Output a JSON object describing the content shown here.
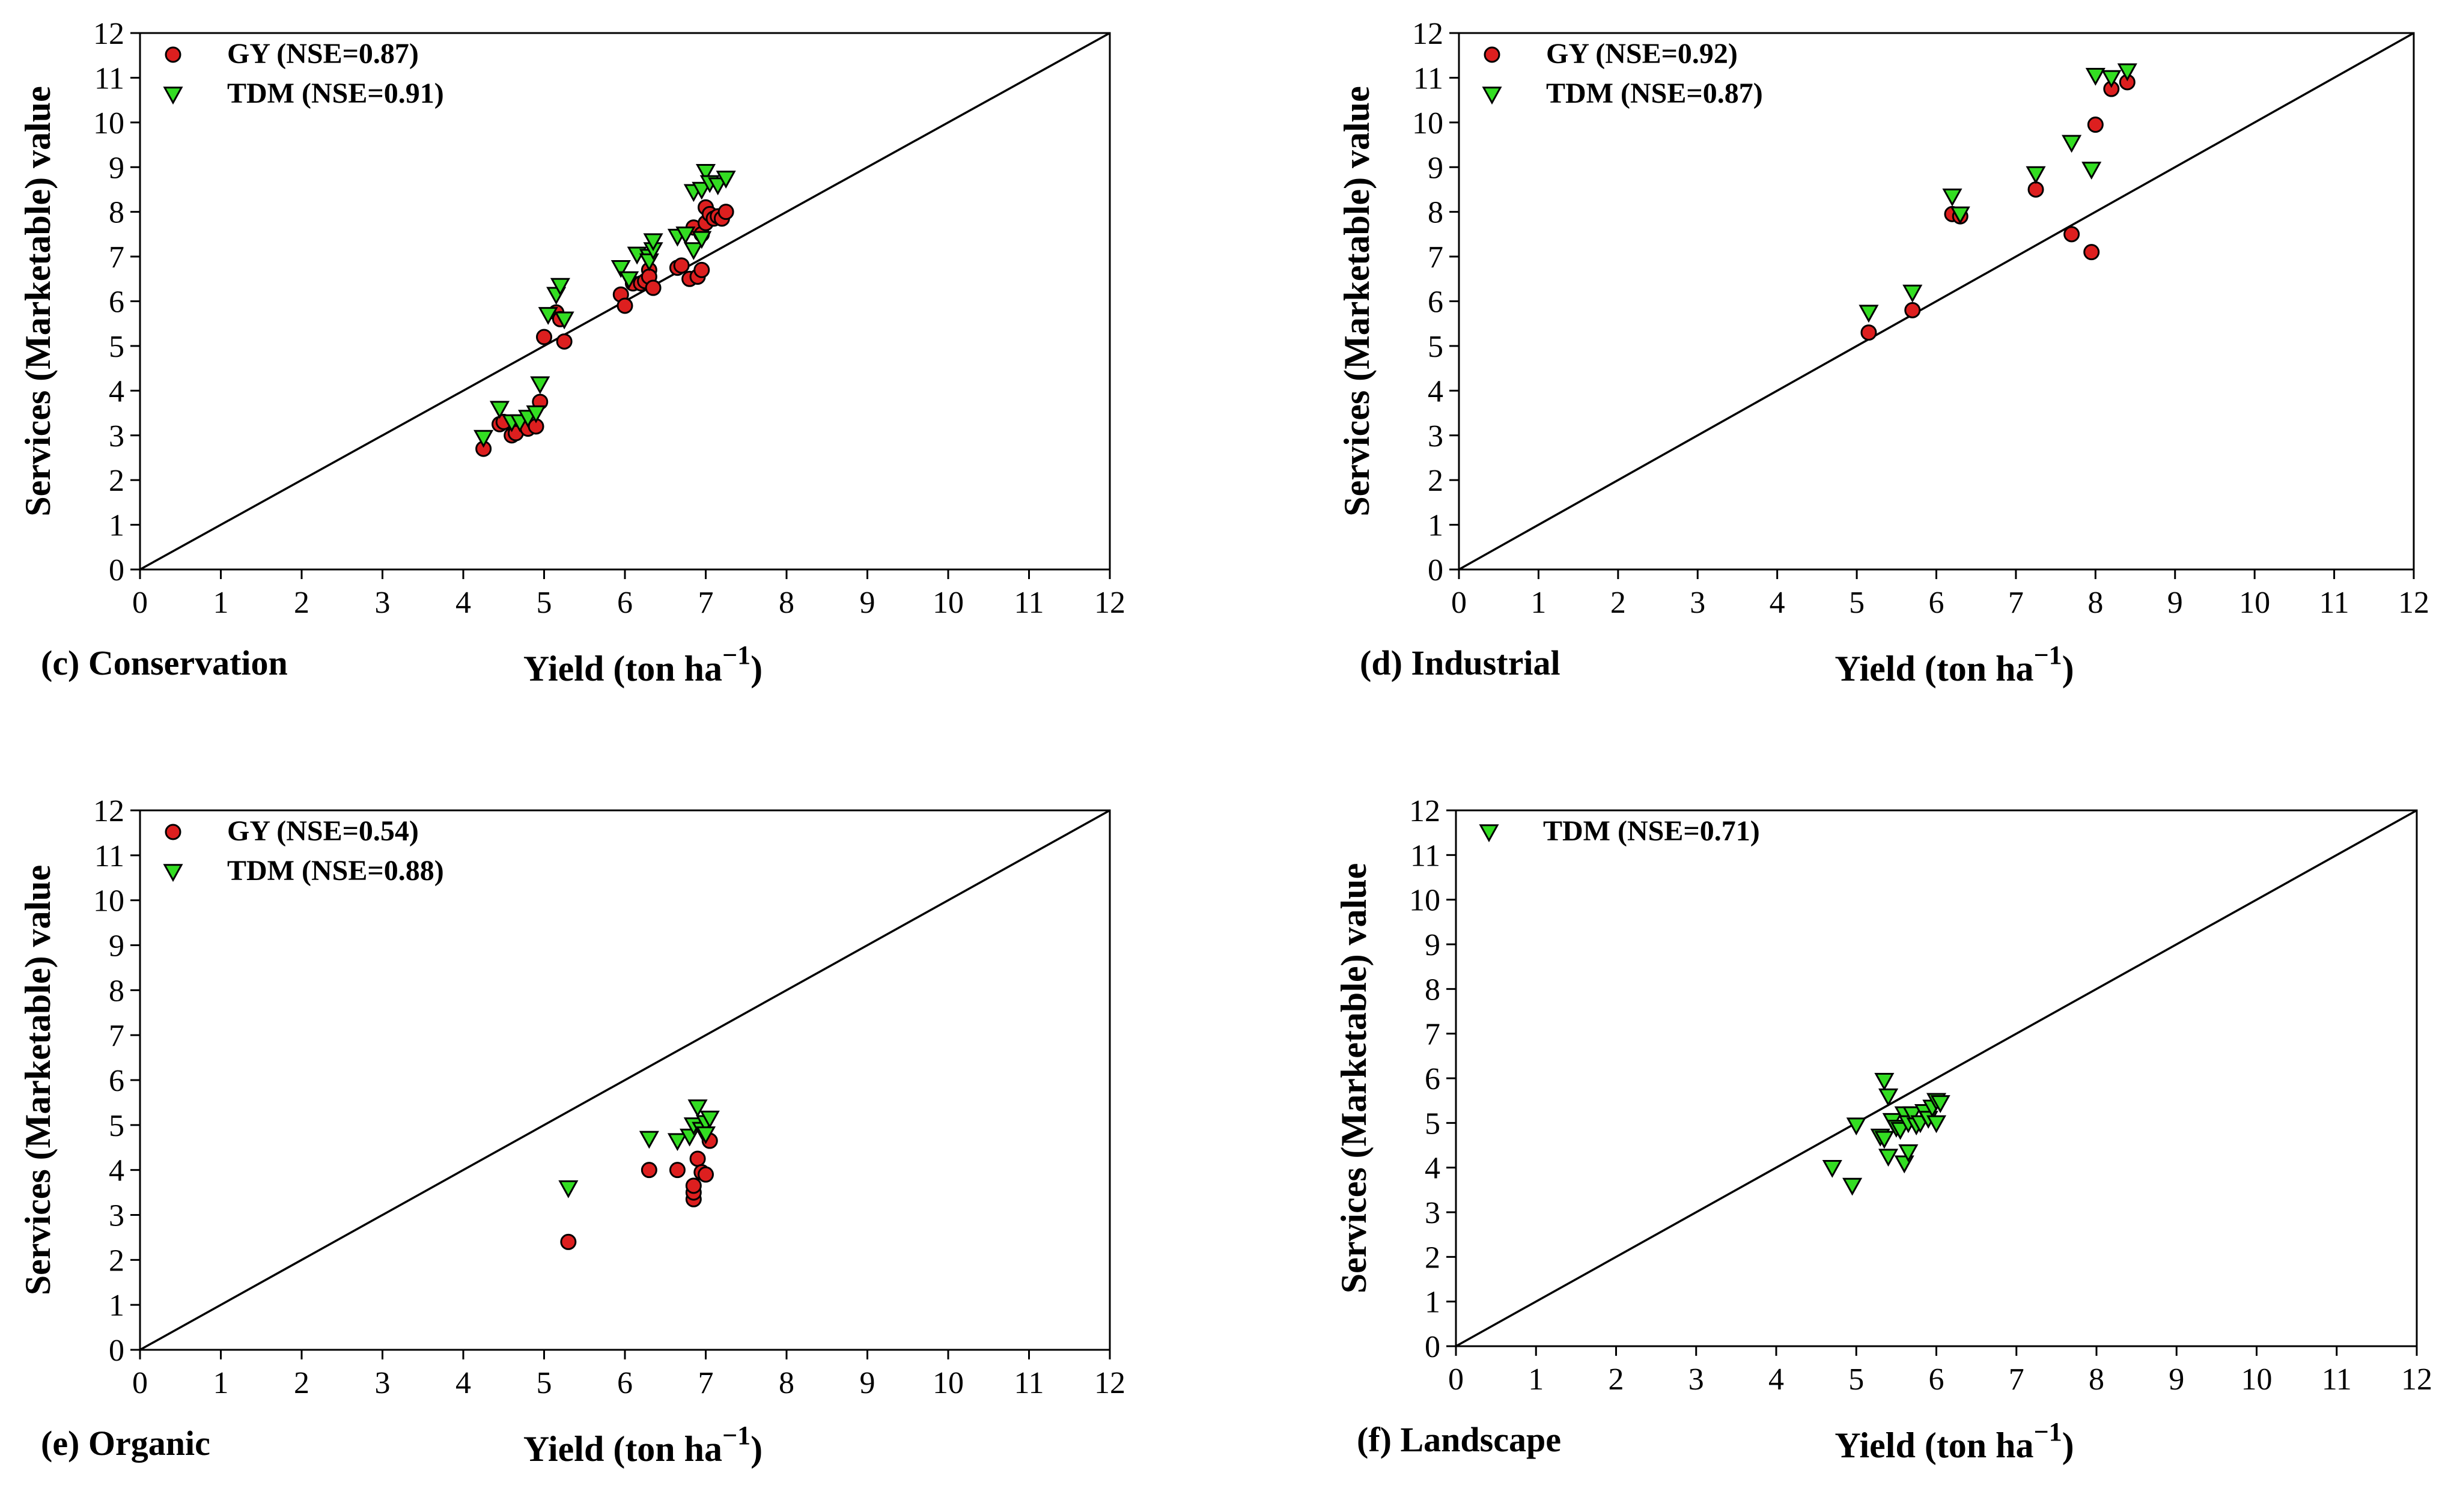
{
  "colors": {
    "gy": "#dd1f1f",
    "tdm": "#33dd22",
    "marker_stroke": "#000000",
    "line": "#000000"
  },
  "chart_data": [
    {
      "type": "scatter",
      "panel_label": "(c) Conservation",
      "xlabel": "Yield (ton ha",
      "xlabel_sup": "−1",
      "xlabel_close": ")",
      "ylabel": "Services (Marketable) value",
      "xlim": [
        0,
        12
      ],
      "ylim": [
        0,
        12
      ],
      "xticks": [
        "0",
        "1",
        "2",
        "3",
        "4",
        "5",
        "6",
        "7",
        "8",
        "9",
        "10",
        "11",
        "12"
      ],
      "yticks": [
        "0",
        "1",
        "2",
        "3",
        "4",
        "5",
        "6",
        "7",
        "8",
        "9",
        "10",
        "11",
        "12"
      ],
      "grid": false,
      "reference_line": "1:1",
      "legend_position": "top-left",
      "series": [
        {
          "name": "GY (NSE=0.87)",
          "marker": "circle",
          "x": [
            4.25,
            4.45,
            4.5,
            4.6,
            4.65,
            4.8,
            4.9,
            4.95,
            5.0,
            5.15,
            5.2,
            5.25,
            5.95,
            6.0,
            6.1,
            6.2,
            6.25,
            6.3,
            6.3,
            6.35,
            6.65,
            6.7,
            6.8,
            6.85,
            6.9,
            6.95,
            6.95,
            7.0,
            7.0,
            7.05,
            7.1,
            7.15,
            7.2,
            7.25
          ],
          "y": [
            2.7,
            3.25,
            3.3,
            3.0,
            3.05,
            3.15,
            3.2,
            3.75,
            5.2,
            5.75,
            5.6,
            5.1,
            6.15,
            5.9,
            6.4,
            6.4,
            6.45,
            6.7,
            6.55,
            6.3,
            6.75,
            6.8,
            6.5,
            7.65,
            6.55,
            6.7,
            7.5,
            7.75,
            8.1,
            7.95,
            7.85,
            7.9,
            7.85,
            8.0
          ]
        },
        {
          "name": "TDM (NSE=0.91)",
          "marker": "triangle-down",
          "x": [
            4.25,
            4.45,
            4.6,
            4.7,
            4.8,
            4.9,
            4.95,
            5.05,
            5.15,
            5.2,
            5.25,
            5.95,
            6.05,
            6.15,
            6.3,
            6.3,
            6.35,
            6.35,
            6.65,
            6.75,
            6.85,
            6.85,
            6.95,
            6.95,
            7.0,
            7.05,
            7.15,
            7.25
          ],
          "y": [
            2.95,
            3.6,
            3.3,
            3.3,
            3.4,
            3.5,
            4.15,
            5.7,
            6.15,
            6.35,
            5.6,
            6.75,
            6.5,
            7.05,
            7.0,
            6.9,
            7.15,
            7.35,
            7.45,
            7.5,
            7.15,
            8.45,
            7.4,
            8.5,
            8.9,
            8.65,
            8.6,
            8.75
          ]
        }
      ]
    },
    {
      "type": "scatter",
      "panel_label": "(d) Industrial",
      "xlabel": "Yield (ton ha",
      "xlabel_sup": "−1",
      "xlabel_close": ")",
      "ylabel": "Services (Marketable) value",
      "xlim": [
        0,
        12
      ],
      "ylim": [
        0,
        12
      ],
      "xticks": [
        "0",
        "1",
        "2",
        "3",
        "4",
        "5",
        "6",
        "7",
        "8",
        "9",
        "10",
        "11",
        "12"
      ],
      "yticks": [
        "0",
        "1",
        "2",
        "3",
        "4",
        "5",
        "6",
        "7",
        "8",
        "9",
        "10",
        "11",
        "12"
      ],
      "grid": false,
      "reference_line": "1:1",
      "legend_position": "top-left",
      "series": [
        {
          "name": "GY (NSE=0.92)",
          "marker": "circle",
          "x": [
            5.15,
            5.7,
            6.2,
            6.3,
            7.25,
            7.7,
            7.95,
            8.0,
            8.2,
            8.4
          ],
          "y": [
            5.3,
            5.8,
            7.95,
            7.9,
            8.5,
            7.5,
            7.1,
            9.95,
            10.75,
            10.9
          ]
        },
        {
          "name": "TDM (NSE=0.87)",
          "marker": "triangle-down",
          "x": [
            5.15,
            5.7,
            6.2,
            6.3,
            7.25,
            7.7,
            7.95,
            8.0,
            8.2,
            8.4
          ],
          "y": [
            5.75,
            6.2,
            8.35,
            7.95,
            8.85,
            9.55,
            8.95,
            11.05,
            11.0,
            11.15
          ]
        }
      ]
    },
    {
      "type": "scatter",
      "panel_label": "(e) Organic",
      "xlabel": "Yield (ton ha",
      "xlabel_sup": "−1",
      "xlabel_close": ")",
      "ylabel": "Services (Marketable) value",
      "xlim": [
        0,
        12
      ],
      "ylim": [
        0,
        12
      ],
      "xticks": [
        "0",
        "1",
        "2",
        "3",
        "4",
        "5",
        "6",
        "7",
        "8",
        "9",
        "10",
        "11",
        "12"
      ],
      "yticks": [
        "0",
        "1",
        "2",
        "3",
        "4",
        "5",
        "6",
        "7",
        "8",
        "9",
        "10",
        "11",
        "12"
      ],
      "grid": false,
      "reference_line": "1:1",
      "legend_position": "top-left",
      "series": [
        {
          "name": "GY (NSE=0.54)",
          "marker": "circle",
          "x": [
            5.3,
            6.3,
            6.65,
            6.85,
            6.85,
            6.85,
            6.9,
            6.95,
            7.0,
            7.05
          ],
          "y": [
            2.4,
            4.0,
            4.0,
            3.35,
            3.5,
            3.65,
            4.25,
            3.95,
            3.9,
            4.65
          ]
        },
        {
          "name": "TDM (NSE=0.88)",
          "marker": "triangle-down",
          "x": [
            5.3,
            6.3,
            6.65,
            6.8,
            6.85,
            6.9,
            6.95,
            7.0,
            7.0,
            7.05
          ],
          "y": [
            3.6,
            4.7,
            4.65,
            4.75,
            5.0,
            5.4,
            4.9,
            5.05,
            4.8,
            5.15
          ]
        }
      ]
    },
    {
      "type": "scatter",
      "panel_label": "(f) Landscape",
      "xlabel": "Yield (ton ha",
      "xlabel_sup": "−1",
      "xlabel_close": ")",
      "ylabel": "Services (Marketable) value",
      "xlim": [
        0,
        12
      ],
      "ylim": [
        0,
        12
      ],
      "xticks": [
        "0",
        "1",
        "2",
        "3",
        "4",
        "5",
        "6",
        "7",
        "8",
        "9",
        "10",
        "11",
        "12"
      ],
      "yticks": [
        "0",
        "1",
        "2",
        "3",
        "4",
        "5",
        "6",
        "7",
        "8",
        "9",
        "10",
        "11",
        "12"
      ],
      "grid": false,
      "reference_line": "1:1",
      "legend_position": "top-left",
      "series": [
        {
          "name": "TDM (NSE=0.71)",
          "marker": "triangle-down",
          "x": [
            4.7,
            4.95,
            5.0,
            5.3,
            5.35,
            5.35,
            5.4,
            5.4,
            5.45,
            5.5,
            5.55,
            5.6,
            5.6,
            5.65,
            5.65,
            5.7,
            5.75,
            5.8,
            5.85,
            5.9,
            5.95,
            6.0,
            6.0,
            6.05
          ],
          "y": [
            4.0,
            3.6,
            4.95,
            4.7,
            4.65,
            5.95,
            5.6,
            4.25,
            5.05,
            4.9,
            4.85,
            5.2,
            4.1,
            4.35,
            5.0,
            5.2,
            4.95,
            5.0,
            5.25,
            5.1,
            5.35,
            5.0,
            5.5,
            5.45
          ]
        }
      ]
    }
  ]
}
